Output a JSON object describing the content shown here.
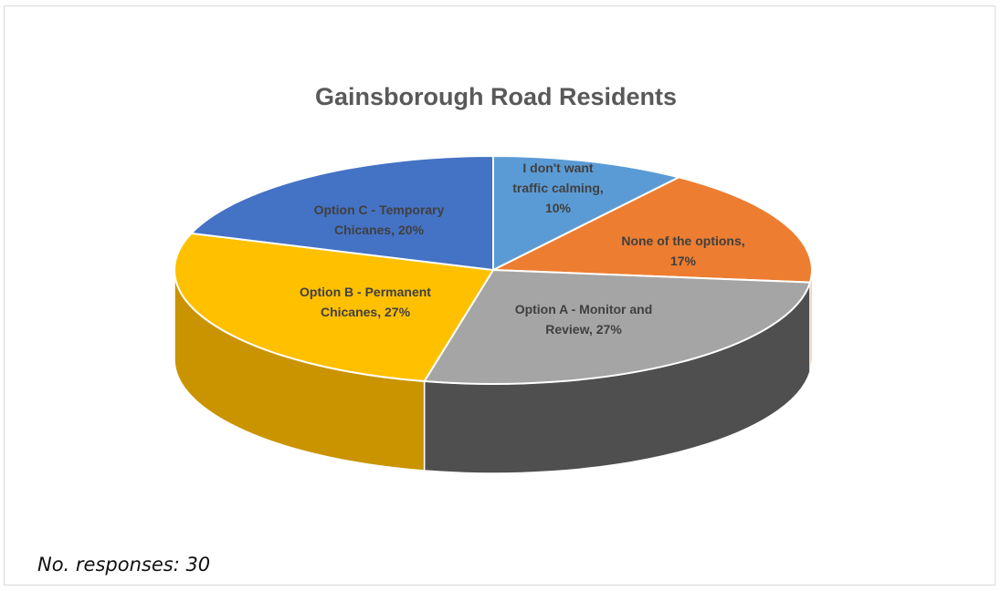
{
  "chart_data": {
    "type": "pie",
    "style": "3d",
    "title": "Gainsborough Road Residents",
    "slices": [
      {
        "label_lines": [
          "I don't want",
          "traffic calming,",
          "10%"
        ],
        "value": 10,
        "color": "#5b9bd5",
        "side_color": "#4a7fb0",
        "label_color": "#404040"
      },
      {
        "label_lines": [
          "None of the options,",
          "17%"
        ],
        "value": 17,
        "color": "#ed7d31",
        "side_color": "#b85f22",
        "label_color": "#404040"
      },
      {
        "label_lines": [
          "Option A - Monitor and",
          "Review, 27%"
        ],
        "value": 27,
        "color": "#a5a5a5",
        "side_color": "#4f4f4f",
        "label_color": "#404040"
      },
      {
        "label_lines": [
          "Option B - Permanent",
          "Chicanes, 27%"
        ],
        "value": 27,
        "color": "#ffc000",
        "side_color": "#c99400",
        "label_color": "#404040"
      },
      {
        "label_lines": [
          "Option C - Temporary",
          "Chicanes, 20%"
        ],
        "value": 20,
        "color": "#4472c4",
        "side_color": "#30569a",
        "label_color": "#404040"
      }
    ]
  },
  "footnote": "No. responses: 30"
}
